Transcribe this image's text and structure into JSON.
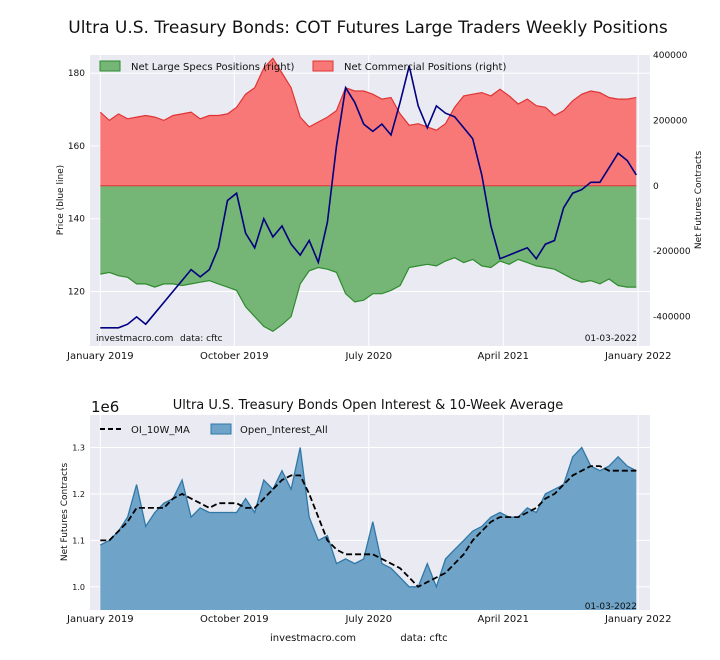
{
  "title": "Ultra U.S. Treasury Bonds: COT Futures Large Traders Weekly Positions",
  "x_tick_labels": [
    "January 2019",
    "October 2019",
    "July 2020",
    "April 2021",
    "January 2022"
  ],
  "top_chart": {
    "left_ylabel": "Price (blue line)",
    "right_ylabel": "Net Futures Contracts",
    "watermark_left": "investmacro.com",
    "watermark_source": "data: cftc",
    "date_label": "01-03-2022",
    "legend": [
      "Net Large Specs Positions (right)",
      "Net Commercial Positions (right)"
    ]
  },
  "bottom_chart": {
    "title": "Ultra U.S. Treasury Bonds Open Interest & 10-Week Average",
    "scale_label": "1e6",
    "ylabel": "Net Futures Contracts",
    "date_label": "01-03-2022",
    "legend": [
      "OI_10W_MA",
      "Open_Interest_All"
    ]
  },
  "footer": {
    "site": "investmacro.com",
    "source": "data: cftc"
  },
  "colors": {
    "spec_fill": "#75b575",
    "spec_line": "#2e8b2e",
    "comm_fill": "#f87878",
    "comm_line": "#e03434",
    "price": "#000080",
    "oi_fill": "#6fa3c7",
    "oi_line": "#2f78a8",
    "ma": "#000000",
    "plot_bg": "#eaeaf2"
  },
  "chart_data": [
    {
      "type": "area",
      "x_start": "2019-01-01",
      "x_end": "2021-12-28",
      "xlim": [
        "2018-12-11",
        "2022-01-25"
      ],
      "left_ylim": [
        105,
        185
      ],
      "left_yticks": [
        120,
        140,
        160,
        180
      ],
      "right_ylim": [
        -490000,
        400000
      ],
      "right_yticks": [
        -400000,
        -200000,
        0,
        200000,
        400000
      ],
      "series": [
        {
          "name": "Net Large Specs Positions (right)",
          "axis": "right",
          "values": [
            -270000,
            -265000,
            -275000,
            -280000,
            -300000,
            -300000,
            -310000,
            -300000,
            -300000,
            -305000,
            -300000,
            -295000,
            -290000,
            -300000,
            -310000,
            -320000,
            -370000,
            -400000,
            -430000,
            -445000,
            -425000,
            -400000,
            -300000,
            -260000,
            -250000,
            -255000,
            -265000,
            -330000,
            -355000,
            -350000,
            -330000,
            -330000,
            -320000,
            -305000,
            -250000,
            -245000,
            -240000,
            -245000,
            -230000,
            -220000,
            -235000,
            -225000,
            -245000,
            -250000,
            -230000,
            -240000,
            -225000,
            -235000,
            -245000,
            -250000,
            -255000,
            -270000,
            -285000,
            -295000,
            -290000,
            -300000,
            -285000,
            -305000,
            -310000,
            -310000
          ]
        },
        {
          "name": "Net Commercial Positions (right)",
          "axis": "right",
          "values": [
            225000,
            200000,
            220000,
            205000,
            210000,
            215000,
            210000,
            200000,
            215000,
            220000,
            225000,
            205000,
            215000,
            215000,
            220000,
            240000,
            280000,
            300000,
            360000,
            390000,
            345000,
            300000,
            210000,
            180000,
            195000,
            210000,
            230000,
            300000,
            290000,
            290000,
            280000,
            265000,
            270000,
            220000,
            185000,
            190000,
            180000,
            170000,
            190000,
            240000,
            275000,
            280000,
            285000,
            275000,
            295000,
            275000,
            250000,
            265000,
            245000,
            240000,
            215000,
            230000,
            260000,
            280000,
            290000,
            285000,
            270000,
            265000,
            265000,
            270000
          ]
        },
        {
          "name": "",
          "axis": "left",
          "values": [
            110,
            110,
            110,
            111,
            113,
            111,
            114,
            117,
            120,
            123,
            126,
            124,
            126,
            132,
            145,
            147,
            136,
            132,
            140,
            135,
            138,
            133,
            130,
            134,
            128,
            139,
            160,
            176,
            172,
            166,
            164,
            166,
            163,
            172,
            182,
            171,
            165,
            171,
            169,
            168,
            165,
            162,
            152,
            138,
            129,
            130,
            131,
            132,
            129,
            133,
            134,
            143,
            147,
            148,
            150,
            150,
            154,
            158,
            156,
            152
          ]
        }
      ]
    },
    {
      "type": "area",
      "x_start": "2019-01-01",
      "x_end": "2021-12-28",
      "ylim": [
        0.95,
        1.37
      ],
      "yticks": [
        1.0,
        1.1,
        1.2,
        1.3
      ],
      "series": [
        {
          "name": "Open_Interest_All",
          "values": [
            1.09,
            1.1,
            1.12,
            1.15,
            1.22,
            1.13,
            1.16,
            1.18,
            1.19,
            1.23,
            1.15,
            1.17,
            1.16,
            1.16,
            1.16,
            1.16,
            1.19,
            1.16,
            1.23,
            1.21,
            1.25,
            1.21,
            1.3,
            1.15,
            1.1,
            1.11,
            1.05,
            1.06,
            1.05,
            1.06,
            1.14,
            1.05,
            1.04,
            1.02,
            1.0,
            1.0,
            1.05,
            1.0,
            1.06,
            1.08,
            1.1,
            1.12,
            1.13,
            1.15,
            1.16,
            1.15,
            1.15,
            1.17,
            1.16,
            1.2,
            1.21,
            1.22,
            1.28,
            1.3,
            1.26,
            1.25,
            1.26,
            1.28,
            1.26,
            1.25
          ]
        },
        {
          "name": "OI_10W_MA",
          "values": [
            1.1,
            1.1,
            1.12,
            1.14,
            1.17,
            1.17,
            1.17,
            1.17,
            1.19,
            1.2,
            1.19,
            1.18,
            1.17,
            1.18,
            1.18,
            1.18,
            1.17,
            1.17,
            1.19,
            1.21,
            1.23,
            1.24,
            1.24,
            1.2,
            1.15,
            1.1,
            1.08,
            1.07,
            1.07,
            1.07,
            1.07,
            1.06,
            1.05,
            1.04,
            1.02,
            1.0,
            1.01,
            1.02,
            1.03,
            1.05,
            1.07,
            1.1,
            1.12,
            1.14,
            1.15,
            1.15,
            1.15,
            1.16,
            1.17,
            1.19,
            1.2,
            1.22,
            1.24,
            1.25,
            1.26,
            1.26,
            1.25,
            1.25,
            1.25,
            1.25
          ]
        }
      ]
    }
  ]
}
